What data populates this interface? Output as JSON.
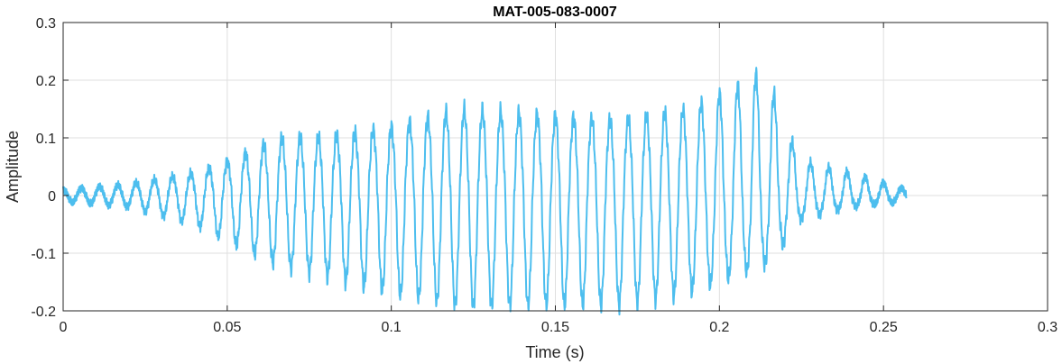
{
  "chart_data": {
    "type": "line",
    "title": "MAT-005-083-0007",
    "xlabel": "Time (s)",
    "ylabel": "Amplitude",
    "xlim": [
      0,
      0.3
    ],
    "ylim": [
      -0.2,
      0.3
    ],
    "xticks": [
      0,
      0.05,
      0.1,
      0.15,
      0.2,
      0.25,
      0.3
    ],
    "xtick_labels": [
      "0",
      "0.05",
      "0.1",
      "0.15",
      "0.2",
      "0.25",
      "0.3"
    ],
    "yticks": [
      -0.2,
      -0.1,
      0,
      0.1,
      0.2,
      0.3
    ],
    "ytick_labels": [
      "-0.2",
      "-0.1",
      "0",
      "0.1",
      "0.2",
      "0.3"
    ],
    "grid": true,
    "line_color": "#4DBEEE",
    "series": [
      {
        "t_end": 0.257,
        "oscillation_frequency_hz": 180,
        "envelope_t": [
          0,
          0.02,
          0.04,
          0.05,
          0.065,
          0.08,
          0.1,
          0.12,
          0.15,
          0.17,
          0.19,
          0.205,
          0.214,
          0.22,
          0.225,
          0.24,
          0.257
        ],
        "envelope_pos": [
          0.01,
          0.02,
          0.04,
          0.06,
          0.1,
          0.1,
          0.12,
          0.15,
          0.14,
          0.13,
          0.15,
          0.19,
          0.22,
          0.12,
          0.06,
          0.04,
          0.01
        ],
        "envelope_neg": [
          -0.01,
          -0.02,
          -0.05,
          -0.08,
          -0.12,
          -0.14,
          -0.17,
          -0.19,
          -0.19,
          -0.19,
          -0.17,
          -0.14,
          -0.12,
          -0.08,
          -0.04,
          -0.02,
          -0.01
        ]
      }
    ]
  }
}
